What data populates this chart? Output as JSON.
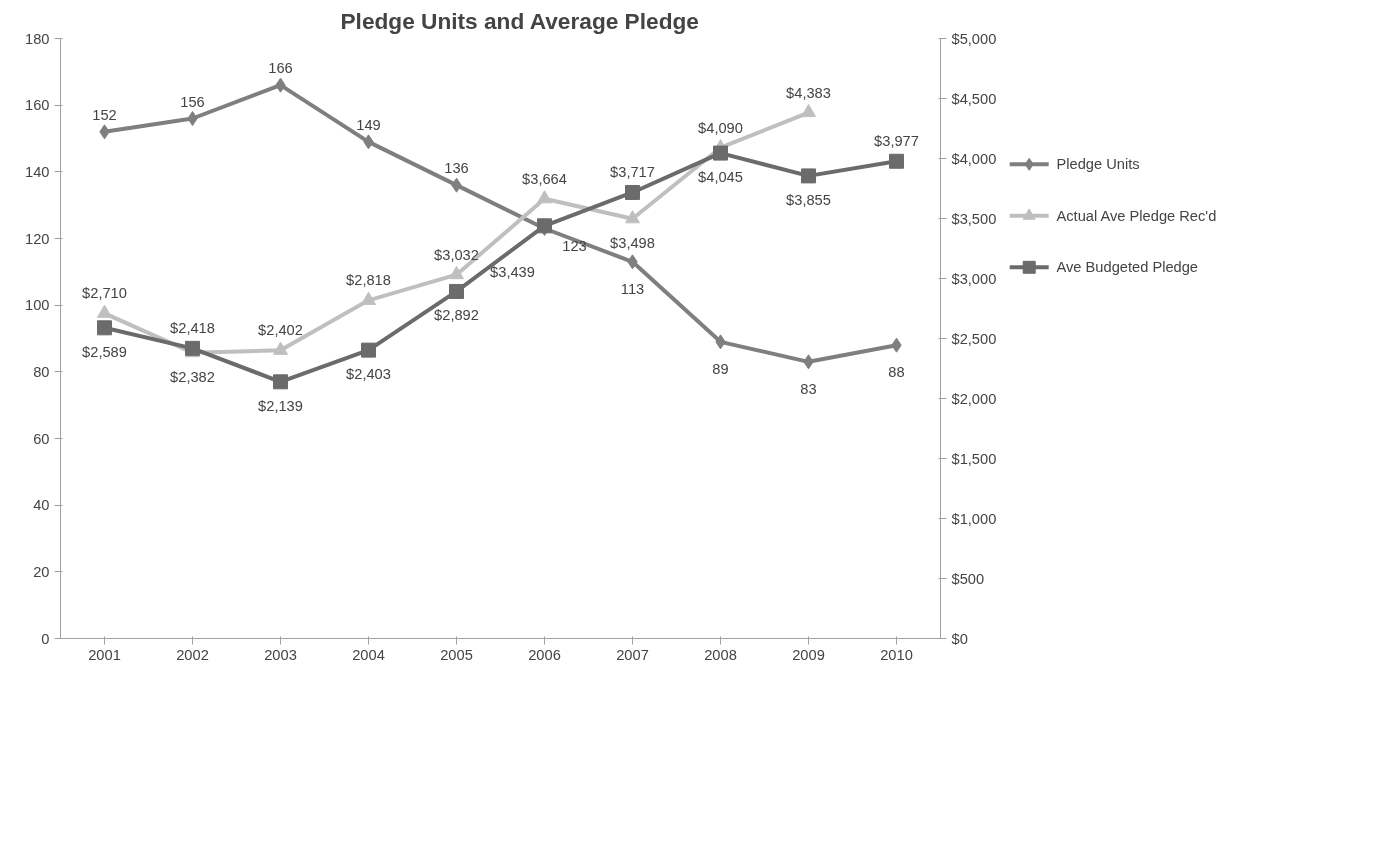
{
  "chart_data": {
    "type": "line",
    "title": "Pledge Units and Average Pledge",
    "categories": [
      "2001",
      "2002",
      "2003",
      "2004",
      "2005",
      "2006",
      "2007",
      "2008",
      "2009",
      "2010"
    ],
    "series": [
      {
        "name": "Pledge Units",
        "color": "#7f7f7f",
        "marker": "diamond",
        "values": [
          152,
          156,
          166,
          149,
          136,
          123,
          113,
          89,
          83,
          88
        ],
        "value_labels": [
          "152",
          "156",
          "166",
          "149",
          "136",
          "123",
          "113",
          "89",
          "83",
          "88"
        ]
      },
      {
        "name": "Actual Ave Pledge Rec'd",
        "color": "#bfbfbf",
        "marker": "triangle",
        "axis": "y2",
        "values": [
          2710,
          2382,
          2402,
          2818,
          3032,
          3664,
          3498,
          4090,
          4383,
          null
        ],
        "value_labels": [
          "$2,710",
          "$2,382",
          "$2,402",
          "$2,818",
          "$3,032",
          "$3,664",
          "$3,498",
          "$4,090",
          "$4,383",
          null
        ]
      },
      {
        "name": "Ave Budgeted Pledge",
        "color": "#6b6b6b",
        "marker": "square",
        "axis": "y2",
        "values": [
          2589,
          2418,
          2139,
          2403,
          2892,
          3439,
          3717,
          4045,
          3855,
          3977
        ],
        "value_labels": [
          "$2,589",
          "$2,418",
          "$2,139",
          "$2,403",
          "$2,892",
          "$3,439",
          "$3,717",
          "$4,045",
          "$3,855",
          "$3,977"
        ]
      }
    ],
    "ylim": [
      0,
      180
    ],
    "yticks": [
      0,
      20,
      40,
      60,
      80,
      100,
      120,
      140,
      160,
      180
    ],
    "y2lim": [
      0,
      5000
    ],
    "y2ticks": [
      {
        "value": 0,
        "label": "$0"
      },
      {
        "value": 500,
        "label": "$500"
      },
      {
        "value": 1000,
        "label": "$1,000"
      },
      {
        "value": 1500,
        "label": "$1,500"
      },
      {
        "value": 2000,
        "label": "$2,000"
      },
      {
        "value": 2500,
        "label": "$2,500"
      },
      {
        "value": 3000,
        "label": "$3,000"
      },
      {
        "value": 3500,
        "label": "$3,500"
      },
      {
        "value": 4000,
        "label": "$4,000"
      },
      {
        "value": 4500,
        "label": "$4,500"
      },
      {
        "value": 5000,
        "label": "$5,000"
      }
    ],
    "grid": false,
    "legend": "right",
    "line_style": "solid"
  }
}
